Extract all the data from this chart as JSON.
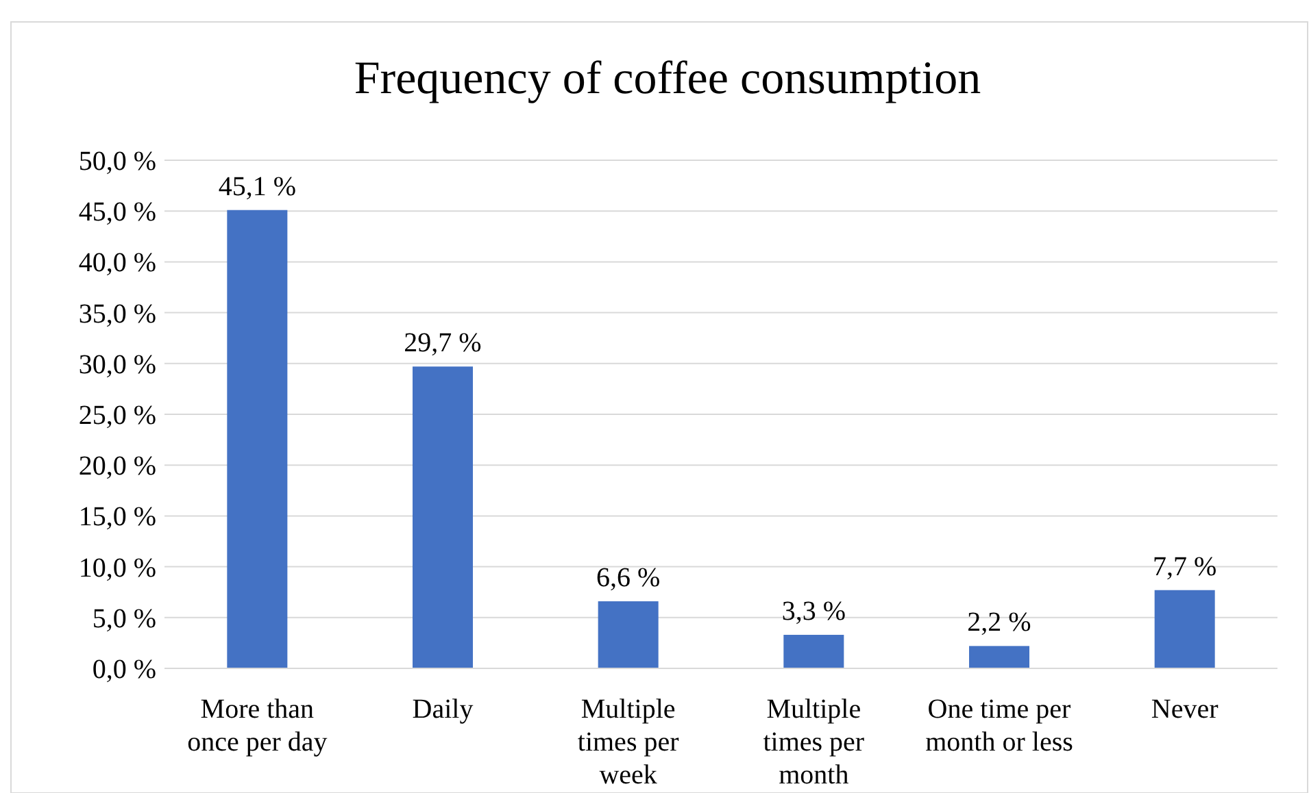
{
  "chart_data": {
    "type": "bar",
    "title": "Frequency of coffee consumption",
    "categories": [
      "More than once per day",
      "Daily",
      "Multiple times per week",
      "Multiple times per month",
      "One time per month or less",
      "Never"
    ],
    "values": [
      45.1,
      29.7,
      6.6,
      3.3,
      2.2,
      7.7
    ],
    "value_labels": [
      "45,1 %",
      "29,7 %",
      "6,6 %",
      "3,3 %",
      "2,2 %",
      "7,7 %"
    ],
    "color": "#4472c4",
    "ylim": [
      0,
      50
    ],
    "yticks": [
      {
        "value": 0,
        "label": "0,0 %"
      },
      {
        "value": 5,
        "label": "5,0 %"
      },
      {
        "value": 10,
        "label": "10,0 %"
      },
      {
        "value": 15,
        "label": "15,0 %"
      },
      {
        "value": 20,
        "label": "20,0 %"
      },
      {
        "value": 25,
        "label": "25,0 %"
      },
      {
        "value": 30,
        "label": "30,0 %"
      },
      {
        "value": 35,
        "label": "35,0 %"
      },
      {
        "value": 40,
        "label": "40,0 %"
      },
      {
        "value": 45,
        "label": "45,0 %"
      },
      {
        "value": 50,
        "label": "50,0 %"
      }
    ],
    "grid": "y"
  }
}
